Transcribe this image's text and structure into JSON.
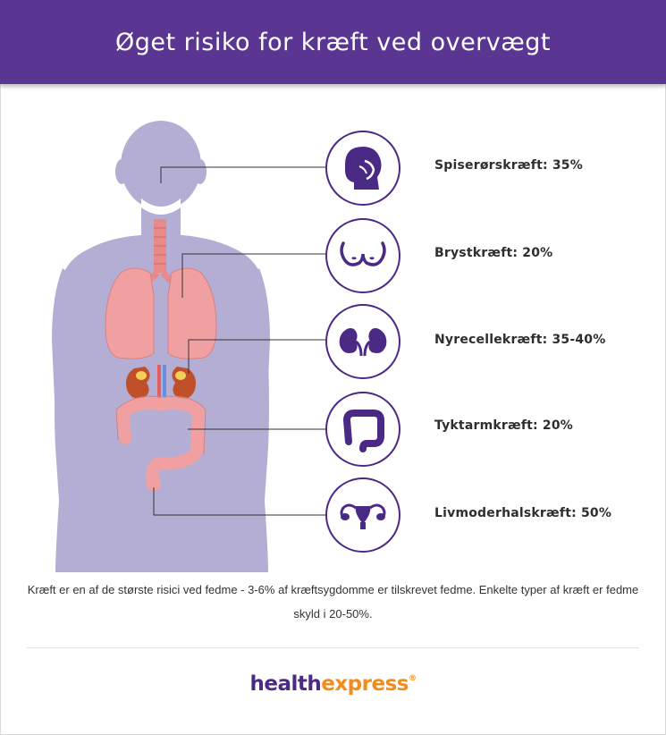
{
  "header": {
    "title": "Øget risiko for kræft ved overvægt"
  },
  "cancers": [
    {
      "label": "Spiserørskræft: 35%",
      "icon": "head-throat-icon"
    },
    {
      "label": "Brystkræft: 20%",
      "icon": "breast-icon"
    },
    {
      "label": "Nyrecellekræft: 35-40%",
      "icon": "kidneys-icon"
    },
    {
      "label": "Tyktarmkræft: 20%",
      "icon": "colon-icon"
    },
    {
      "label": "Livmoderhalskræft: 50%",
      "icon": "uterus-icon"
    }
  ],
  "footnote": "Kræft er en af de største risici ved fedme - 3-6% af kræftsygdomme er tilskrevet fedme. Enkelte typer af kræft er fedme skyld i 20-50%.",
  "logo": {
    "part1": "health",
    "part2": "express",
    "mark": "®"
  },
  "colors": {
    "header": "#5a3592",
    "silhouette": "#b4aed4",
    "organ": "#f0a0a0",
    "icon": "#4b2a85",
    "logo_orange": "#f28c1e"
  }
}
